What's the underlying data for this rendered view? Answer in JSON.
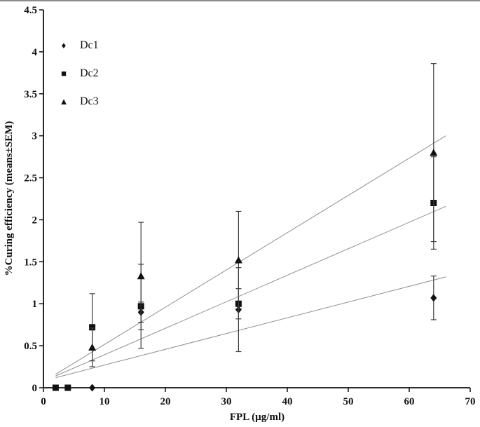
{
  "chart_data": {
    "type": "scatter",
    "title": "",
    "xlabel": "FPL (µg/ml)",
    "ylabel": "%Curing efficiency (means±SEM)",
    "xlim": [
      0,
      70
    ],
    "ylim": [
      0,
      4.5
    ],
    "xticks": [
      0,
      10,
      20,
      30,
      40,
      50,
      60,
      70
    ],
    "yticks": [
      0,
      0.5,
      1,
      1.5,
      2,
      2.5,
      3,
      3.5,
      4,
      4.5
    ],
    "grid": false,
    "legend_position": "top-left-inside",
    "marker_color": "#111111",
    "errorbar_color": "#3c3c3c",
    "trendline_color": "#8f8f8f",
    "series": [
      {
        "name": "Dc1",
        "marker": "diamond",
        "points": [
          {
            "x": 8,
            "y": 0,
            "err": 0
          },
          {
            "x": 16,
            "y": 0.9,
            "err": 0.12
          },
          {
            "x": 32,
            "y": 0.93,
            "err": 0.5
          },
          {
            "x": 64,
            "y": 1.07,
            "err": 0.26
          }
        ],
        "trendline": {
          "x1": 2,
          "y1": 0.12,
          "x2": 66,
          "y2": 1.32
        }
      },
      {
        "name": "Dc2",
        "marker": "square",
        "points": [
          {
            "x": 2,
            "y": 0,
            "err": 0
          },
          {
            "x": 4,
            "y": 0,
            "err": 0
          },
          {
            "x": 8,
            "y": 0.72,
            "err": 0.4
          },
          {
            "x": 16,
            "y": 0.97,
            "err": 0.5
          },
          {
            "x": 32,
            "y": 1.0,
            "err": 0.18
          },
          {
            "x": 64,
            "y": 2.2,
            "err": 0.55
          }
        ],
        "trendline": {
          "x1": 2,
          "y1": 0.14,
          "x2": 66,
          "y2": 2.16
        }
      },
      {
        "name": "Dc3",
        "marker": "triangle",
        "points": [
          {
            "x": 8,
            "y": 0.48,
            "err": 0.23
          },
          {
            "x": 16,
            "y": 1.33,
            "err": 0.64
          },
          {
            "x": 32,
            "y": 1.52,
            "err": 0.58
          },
          {
            "x": 64,
            "y": 2.8,
            "err": 1.06
          }
        ],
        "trendline": {
          "x1": 2,
          "y1": 0.16,
          "x2": 66,
          "y2": 3.0
        }
      }
    ]
  }
}
